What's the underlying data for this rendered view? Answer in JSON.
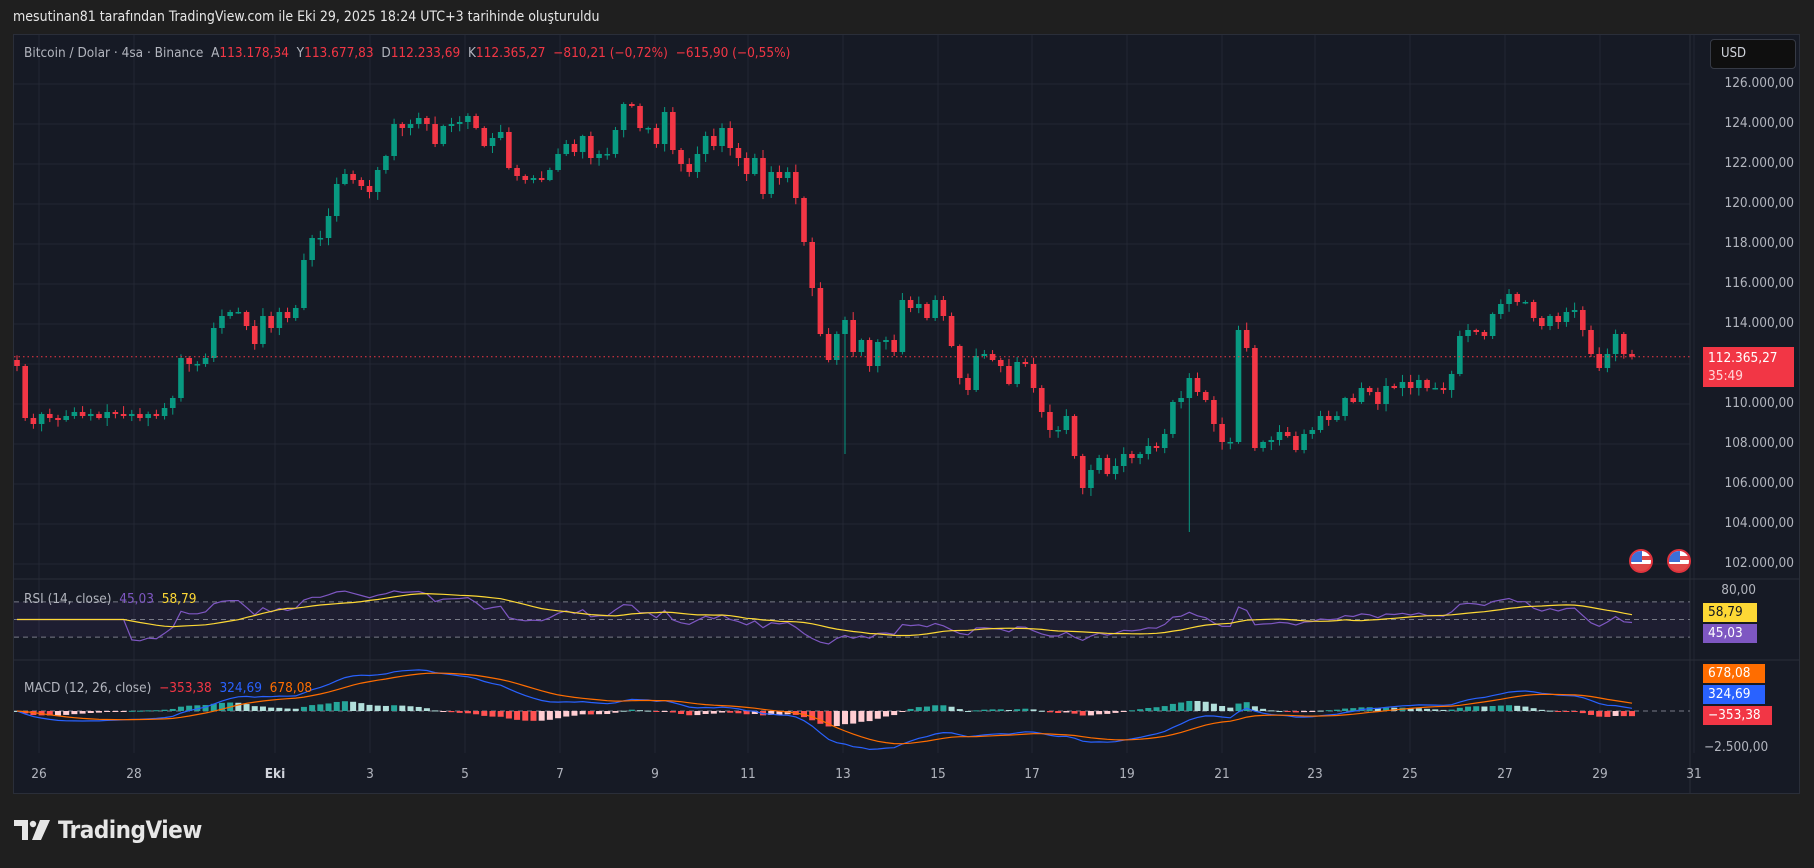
{
  "credit": "mesutinan81 tarafından TradingView.com ile Eki 29, 2025 18:24 UTC+3 tarihinde oluşturuldu",
  "header": {
    "symbol": "Bitcoin / Dolar · 4sa · Binance",
    "open_label": "A",
    "open": "113.178,34",
    "high_label": "Y",
    "high": "113.677,83",
    "low_label": "D",
    "low": "112.233,69",
    "close_label": "K",
    "close": "112.365,27",
    "change": "−810,21 (−0,72%)",
    "change2": "−615,90 (−0,55%)"
  },
  "currency_button": "USD",
  "price_axis": [
    "126.000,00",
    "124.000,00",
    "122.000,00",
    "120.000,00",
    "118.000,00",
    "116.000,00",
    "114.000,00",
    "110.000,00",
    "108.000,00",
    "106.000,00",
    "104.000,00",
    "102.000,00"
  ],
  "last_price": {
    "value": "112.365,27",
    "countdown": "35:49",
    "color": "#f23645"
  },
  "rsi": {
    "label": "RSI (14, close)",
    "rsi_value": "45,03",
    "ma_value": "58,79",
    "axis_top": "80,00",
    "rsi_color": "#7e57c2",
    "ma_color": "#fdd835"
  },
  "macd": {
    "label": "MACD (12, 26, close)",
    "hist": "−353,38",
    "macd": "324,69",
    "signal": "678,08",
    "axis_bottom": "−2.500,00",
    "macd_color": "#2962ff",
    "signal_color": "#ff6d00",
    "hist_neg_color": "#ff5252"
  },
  "x_axis": [
    "26",
    "28",
    "Eki",
    "3",
    "5",
    "7",
    "9",
    "11",
    "13",
    "15",
    "17",
    "19",
    "21",
    "23",
    "25",
    "27",
    "29",
    "31"
  ],
  "colors": {
    "up": "#089981",
    "down": "#f23645",
    "bg": "#161a25",
    "grid": "#232733"
  },
  "footer": {
    "brand": "TradingView"
  },
  "chart_data": {
    "type": "candlestick",
    "title": "Bitcoin / Dolar · 4sa · Binance",
    "xlabel": "",
    "ylabel": "USD",
    "ylim": [
      101500,
      126500
    ],
    "x_ticks": [
      "26",
      "28",
      "Eki",
      "3",
      "5",
      "7",
      "9",
      "11",
      "13",
      "15",
      "17",
      "19",
      "21",
      "23",
      "25",
      "27",
      "29",
      "31"
    ],
    "close_series_approx": [
      111900,
      109300,
      109000,
      109500,
      109300,
      109200,
      109400,
      109600,
      109400,
      109500,
      109300,
      109600,
      109500,
      109400,
      109500,
      109300,
      109500,
      109400,
      109800,
      110300,
      112300,
      112000,
      112000,
      112300,
      113800,
      114400,
      114600,
      114600,
      113900,
      113000,
      114400,
      113800,
      114600,
      114300,
      114800,
      117200,
      118300,
      118300,
      119400,
      121000,
      121500,
      121200,
      120900,
      120600,
      121700,
      122400,
      124000,
      123800,
      124000,
      124300,
      124000,
      123000,
      123900,
      124000,
      124100,
      124400,
      123800,
      122900,
      123300,
      123600,
      121800,
      121400,
      121200,
      121300,
      121200,
      121700,
      122500,
      123000,
      122600,
      123400,
      122300,
      122500,
      122500,
      123700,
      125000,
      124900,
      123800,
      123800,
      123000,
      124600,
      122700,
      122000,
      121600,
      122500,
      123400,
      122900,
      123800,
      122800,
      122300,
      121500,
      122300,
      120500,
      121600,
      121300,
      121600,
      120300,
      118100,
      115800,
      113500,
      112200,
      113500,
      114200,
      112600,
      113200,
      111900,
      113100,
      113200,
      112600,
      115200,
      114800,
      115000,
      114300,
      115200,
      114400,
      112900,
      111300,
      110700,
      112400,
      112500,
      112200,
      111900,
      111000,
      112100,
      112000,
      110800,
      109600,
      108700,
      108700,
      109400,
      107400,
      105800,
      106700,
      107300,
      106500,
      106900,
      107500,
      107300,
      107500,
      107900,
      107800,
      108500,
      110100,
      110300,
      111300,
      110600,
      110200,
      109000,
      108100,
      108100,
      113700,
      112800,
      107800,
      108100,
      108200,
      108600,
      108400,
      107700,
      108500,
      108700,
      109400,
      109200,
      109400,
      110300,
      110100,
      110800,
      110600,
      110000,
      110900,
      110800,
      111100,
      110800,
      111200,
      110800,
      110800,
      110700,
      111500,
      113400,
      113700,
      113600,
      113400,
      114500,
      115000,
      115500,
      115100,
      115100,
      114300,
      113900,
      114400,
      114100,
      114600,
      114700,
      113700,
      112500,
      111800,
      112500,
      113500,
      112500,
      112365
    ]
  }
}
